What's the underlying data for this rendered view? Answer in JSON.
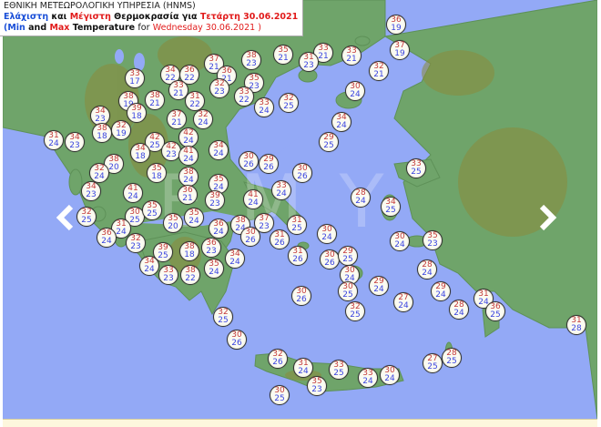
{
  "header": {
    "agency": "ΕΘΝΙΚΗ ΜΕΤΕΩΡΟΛΟΓΙΚΗ ΥΠΗΡΕΣΙΑ (HNMS)",
    "gr_min": "Ελάχιστη",
    "gr_and": "και",
    "gr_max": "Μέγιστη",
    "gr_temp": "Θερμοκρασία για",
    "gr_date": "Τετάρτη 30.06.2021",
    "en_open": "(",
    "en_min": "Min",
    "en_and": "and",
    "en_max": "Max",
    "en_temp": "Temperature",
    "en_for": "for",
    "en_date": "Wednesday 30.06.2021 )"
  },
  "watermark": "ΕΜΥ",
  "colors": {
    "sea": "#93a9f6",
    "land": "#6fa46a",
    "max_text": "#c43b3b",
    "min_text": "#3b45e0"
  },
  "navigation": {
    "prev_icon": "chevron-left-icon",
    "next_icon": "chevron-right-icon"
  },
  "stations": [
    {
      "max": "36",
      "min": "19"
    },
    {
      "max": "37",
      "min": "19"
    },
    {
      "max": "33",
      "min": "21"
    },
    {
      "max": "33",
      "min": "21"
    },
    {
      "max": "35",
      "min": "21"
    },
    {
      "max": "31",
      "min": "23"
    },
    {
      "max": "38",
      "min": "23"
    },
    {
      "max": "37",
      "min": "21"
    },
    {
      "max": "32",
      "min": "21"
    },
    {
      "max": "36",
      "min": "21"
    },
    {
      "max": "32",
      "min": "23"
    },
    {
      "max": "35",
      "min": "23"
    },
    {
      "max": "33",
      "min": "22"
    },
    {
      "max": "30",
      "min": "24"
    },
    {
      "max": "33",
      "min": "24"
    },
    {
      "max": "32",
      "min": "25"
    },
    {
      "max": "33",
      "min": "17"
    },
    {
      "max": "34",
      "min": "22"
    },
    {
      "max": "36",
      "min": "22"
    },
    {
      "max": "38",
      "min": "19"
    },
    {
      "max": "33",
      "min": "21"
    },
    {
      "max": "38",
      "min": "21"
    },
    {
      "max": "31",
      "min": "22"
    },
    {
      "max": "34",
      "min": "23"
    },
    {
      "max": "39",
      "min": "18"
    },
    {
      "max": "37",
      "min": "21"
    },
    {
      "max": "32",
      "min": "24"
    },
    {
      "max": "38",
      "min": "18"
    },
    {
      "max": "32",
      "min": "19"
    },
    {
      "max": "31",
      "min": "24"
    },
    {
      "max": "34",
      "min": "23"
    },
    {
      "max": "42",
      "min": "25"
    },
    {
      "max": "42",
      "min": "23"
    },
    {
      "max": "42",
      "min": "24"
    },
    {
      "max": "41",
      "min": "24"
    },
    {
      "max": "34",
      "min": "18"
    },
    {
      "max": "34",
      "min": "24"
    },
    {
      "max": "38",
      "min": "20"
    },
    {
      "max": "32",
      "min": "24"
    },
    {
      "max": "35",
      "min": "18"
    },
    {
      "max": "38",
      "min": "24"
    },
    {
      "max": "34",
      "min": "23"
    },
    {
      "max": "41",
      "min": "24"
    },
    {
      "max": "35",
      "min": "24"
    },
    {
      "max": "36",
      "min": "21"
    },
    {
      "max": "39",
      "min": "23"
    },
    {
      "max": "32",
      "min": "25"
    },
    {
      "max": "30",
      "min": "25"
    },
    {
      "max": "35",
      "min": "25"
    },
    {
      "max": "35",
      "min": "20"
    },
    {
      "max": "35",
      "min": "24"
    },
    {
      "max": "36",
      "min": "24"
    },
    {
      "max": "38",
      "min": "24"
    },
    {
      "max": "31",
      "min": "24"
    },
    {
      "max": "36",
      "min": "24"
    },
    {
      "max": "32",
      "min": "23"
    },
    {
      "max": "39",
      "min": "25"
    },
    {
      "max": "38",
      "min": "18"
    },
    {
      "max": "36",
      "min": "23"
    },
    {
      "max": "34",
      "min": "24"
    },
    {
      "max": "34",
      "min": "24"
    },
    {
      "max": "35",
      "min": "24"
    },
    {
      "max": "33",
      "min": "23"
    },
    {
      "max": "38",
      "min": "22"
    },
    {
      "max": "34",
      "min": "24"
    },
    {
      "max": "29",
      "min": "25"
    },
    {
      "max": "30",
      "min": "26"
    },
    {
      "max": "29",
      "min": "26"
    },
    {
      "max": "30",
      "min": "26"
    },
    {
      "max": "33",
      "min": "25"
    },
    {
      "max": "33",
      "min": "24"
    },
    {
      "max": "28",
      "min": "24"
    },
    {
      "max": "41",
      "min": "24"
    },
    {
      "max": "34",
      "min": "25"
    },
    {
      "max": "37",
      "min": "23"
    },
    {
      "max": "31",
      "min": "25"
    },
    {
      "max": "30",
      "min": "24"
    },
    {
      "max": "30",
      "min": "26"
    },
    {
      "max": "31",
      "min": "26"
    },
    {
      "max": "30",
      "min": "24"
    },
    {
      "max": "35",
      "min": "23"
    },
    {
      "max": "31",
      "min": "26"
    },
    {
      "max": "30",
      "min": "26"
    },
    {
      "max": "29",
      "min": "25"
    },
    {
      "max": "30",
      "min": "24"
    },
    {
      "max": "30",
      "min": "25"
    },
    {
      "max": "29",
      "min": "24"
    },
    {
      "max": "30",
      "min": "26"
    },
    {
      "max": "27",
      "min": "24"
    },
    {
      "max": "32",
      "min": "25"
    },
    {
      "max": "32",
      "min": "25"
    },
    {
      "max": "30",
      "min": "26"
    },
    {
      "max": "32",
      "min": "26"
    },
    {
      "max": "31",
      "min": "24"
    },
    {
      "max": "33",
      "min": "25"
    },
    {
      "max": "35",
      "min": "23"
    },
    {
      "max": "33",
      "min": "24"
    },
    {
      "max": "30",
      "min": "24"
    },
    {
      "max": "30",
      "min": "25"
    },
    {
      "max": "28",
      "min": "24"
    },
    {
      "max": "29",
      "min": "24"
    },
    {
      "max": "28",
      "min": "24"
    },
    {
      "max": "31",
      "min": "24"
    },
    {
      "max": "36",
      "min": "25"
    },
    {
      "max": "31",
      "min": "28"
    },
    {
      "max": "28",
      "min": "25"
    },
    {
      "max": "27",
      "min": "25"
    }
  ]
}
